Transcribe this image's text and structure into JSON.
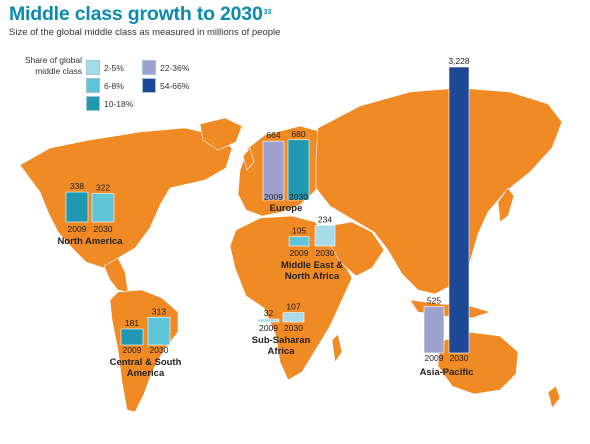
{
  "title": "Middle class growth to 2030",
  "title_footnote": "33",
  "subtitle": "Size of the global middle class as measured in millions of people",
  "legend": {
    "title": "Share of global middle class",
    "items": [
      {
        "label": "2-5%",
        "color": "#a6dcea"
      },
      {
        "label": "6-8%",
        "color": "#5ec4d8"
      },
      {
        "label": "10-18%",
        "color": "#1f98b0"
      },
      {
        "label": "22-36%",
        "color": "#9ea2d0"
      },
      {
        "label": "54-66%",
        "color": "#1d4895"
      }
    ]
  },
  "colors": {
    "land": "#f08a24",
    "background": "#ffffff",
    "title": "#0a8bb0"
  },
  "chart_data": {
    "type": "bar",
    "title": "Middle class growth to 2030",
    "subtitle": "Size of the global middle class as measured in millions of people",
    "unit": "millions of people",
    "categories": [
      "2009",
      "2030"
    ],
    "regions": [
      {
        "name": "North America",
        "values": [
          338,
          322
        ],
        "colors": [
          "#1f98b0",
          "#5ec4d8"
        ],
        "value_labels": [
          "338",
          "322"
        ]
      },
      {
        "name": "Europe",
        "values": [
          664,
          680
        ],
        "colors": [
          "#9ea2d0",
          "#1f98b0"
        ],
        "value_labels": [
          "664",
          "680"
        ]
      },
      {
        "name": "Middle East & North Africa",
        "values": [
          105,
          234
        ],
        "colors": [
          "#5ec4d8",
          "#a6dcea"
        ],
        "value_labels": [
          "105",
          "234"
        ]
      },
      {
        "name": "Central & South America",
        "values": [
          181,
          313
        ],
        "colors": [
          "#1f98b0",
          "#5ec4d8"
        ],
        "value_labels": [
          "181",
          "313"
        ]
      },
      {
        "name": "Sub-Saharan Africa",
        "values": [
          32,
          107
        ],
        "colors": [
          "#a6dcea",
          "#a6dcea"
        ],
        "value_labels": [
          "32",
          "107"
        ]
      },
      {
        "name": "Asia-Pacific",
        "values": [
          525,
          3228
        ],
        "colors": [
          "#9ea2d0",
          "#1d4895"
        ],
        "value_labels": [
          "525",
          "3,228"
        ]
      }
    ]
  }
}
